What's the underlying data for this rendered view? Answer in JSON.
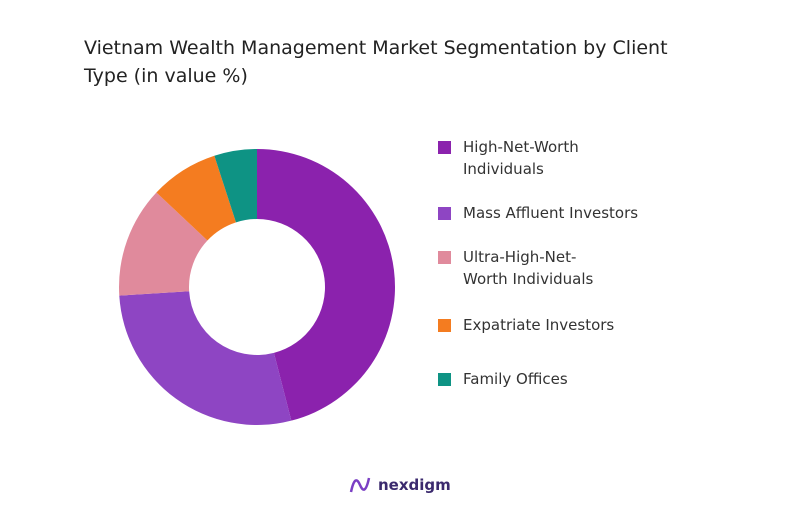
{
  "chart_data": {
    "type": "donut",
    "title": "Vietnam Wealth Management Market Segmentation by Client Type (in value %)",
    "categories": [
      "High-Net-Worth Individuals",
      "Mass Affluent Investors",
      "Ultra-High-Net-Worth Individuals",
      "Expatriate Investors",
      "Family Offices"
    ],
    "values": [
      46,
      28,
      13,
      8,
      5
    ],
    "colors": [
      "#8b22ad",
      "#8e45c3",
      "#e08a9c",
      "#f47c20",
      "#0e9384"
    ],
    "legend": "right"
  },
  "logo": "nexdigm"
}
